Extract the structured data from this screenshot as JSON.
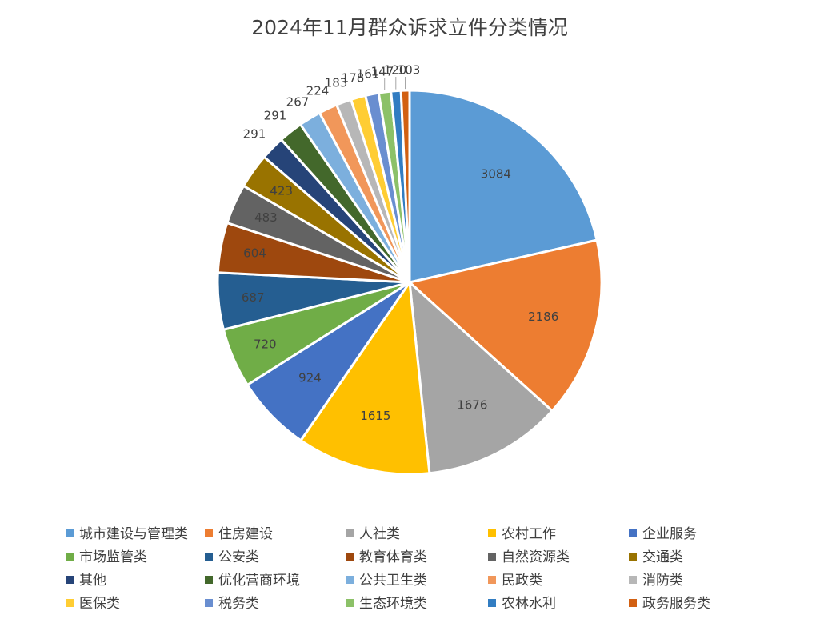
{
  "chart_data": {
    "type": "pie",
    "title": "2024年11月群众诉求立件分类情况",
    "legend_position": "bottom",
    "start_angle_deg": 0,
    "direction": "clockwise",
    "slices": [
      {
        "name": "城市建设与管理类",
        "value": 3084,
        "color": "#5B9BD5"
      },
      {
        "name": "住房建设",
        "value": 2186,
        "color": "#ED7D31"
      },
      {
        "name": "人社类",
        "value": 1676,
        "color": "#A5A5A5"
      },
      {
        "name": "农村工作",
        "value": 1615,
        "color": "#FFC000"
      },
      {
        "name": "企业服务",
        "value": 924,
        "color": "#4472C4"
      },
      {
        "name": "市场监管类",
        "value": 720,
        "color": "#70AD47"
      },
      {
        "name": "公安类",
        "value": 687,
        "color": "#255E91"
      },
      {
        "name": "教育体育类",
        "value": 604,
        "color": "#9E480E"
      },
      {
        "name": "自然资源类",
        "value": 483,
        "color": "#636363"
      },
      {
        "name": "交通类",
        "value": 423,
        "color": "#997300"
      },
      {
        "name": "其他",
        "value": 291,
        "color": "#264478"
      },
      {
        "name": "优化营商环境",
        "value": 291,
        "color": "#43682B"
      },
      {
        "name": "公共卫生类",
        "value": 267,
        "color": "#7CAFDD"
      },
      {
        "name": "民政类",
        "value": 224,
        "color": "#F1975A"
      },
      {
        "name": "消防类",
        "value": 183,
        "color": "#B7B7B7"
      },
      {
        "name": "医保类",
        "value": 178,
        "color": "#FFCD33"
      },
      {
        "name": "税务类",
        "value": 161,
        "color": "#698ED0"
      },
      {
        "name": "生态环境类",
        "value": 147,
        "color": "#8CC168"
      },
      {
        "name": "农林水利",
        "value": 120,
        "color": "#327DC2"
      },
      {
        "name": "政务服务类",
        "value": 103,
        "color": "#D26012"
      }
    ]
  }
}
